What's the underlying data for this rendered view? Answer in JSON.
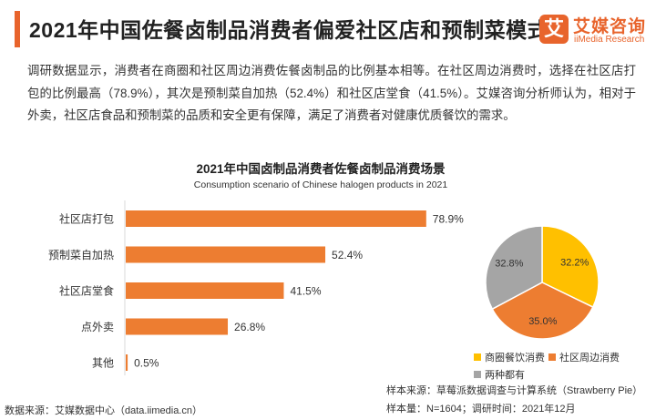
{
  "header": {
    "title": "2021年中国佐餐卤制品消费者偏爱社区店和预制菜模式",
    "accent_color": "#e8642c"
  },
  "logo": {
    "mark": "艾",
    "name_cn": "艾媒咨询",
    "name_en": "iiMedia Research"
  },
  "intro": {
    "text": "调研数据显示，消费者在商圈和社区周边消费佐餐卤制品的比例基本相等。在社区周边消费时，选择在社区店打包的比例最高（78.9%），其次是预制菜自加热（52.4%）和社区店堂食（41.5%）。艾媒咨询分析师认为，相对于外卖，社区店食品和预制菜的品质和安全更有保障，满足了消费者对健康优质餐饮的需求。"
  },
  "chart_data": [
    {
      "type": "bar",
      "orientation": "horizontal",
      "title": "2021年中国卤制品消费者佐餐卤制品消费场景",
      "subtitle": "Consumption scenario of Chinese halogen products in 2021",
      "categories": [
        "社区店打包",
        "预制菜自加热",
        "社区店堂食",
        "点外卖",
        "其他"
      ],
      "values": [
        78.9,
        52.4,
        41.5,
        26.8,
        0.5
      ],
      "value_labels": [
        "78.9%",
        "52.4%",
        "41.5%",
        "26.8%",
        "0.5%"
      ],
      "xlim": [
        0,
        100
      ],
      "color": "#ed7d31",
      "grid": false
    },
    {
      "type": "pie",
      "labels": [
        "商圈餐饮消费",
        "社区周边消费",
        "两种都有"
      ],
      "values": [
        32.2,
        35.0,
        32.8
      ],
      "value_labels": [
        "32.2%",
        "35.0%",
        "32.8%"
      ],
      "colors": [
        "#ffc000",
        "#ed7d31",
        "#a5a5a5"
      ],
      "legend_position": "bottom"
    }
  ],
  "footer": {
    "sample_source": "样本来源：草莓派数据调查与计算系统（Strawberry Pie）",
    "sample_size": "样本量：N=1604；调研时间：2021年12月",
    "data_source": "数据来源：艾媒数据中心（data.iimedia.cn）"
  }
}
